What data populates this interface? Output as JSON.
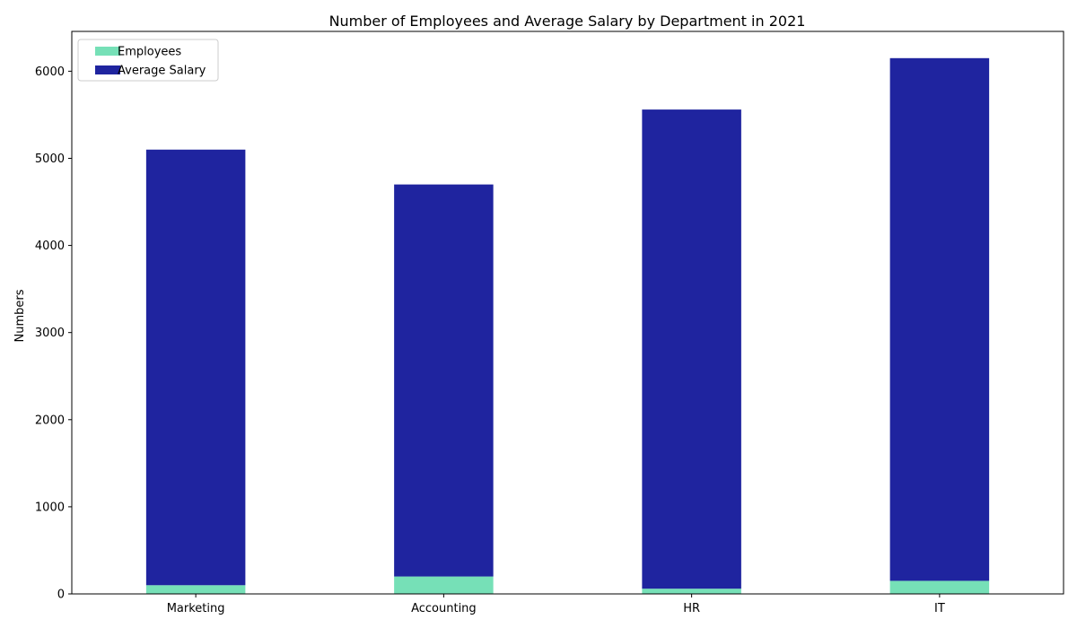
{
  "chart_data": {
    "type": "bar",
    "stacked": true,
    "title": "Number of Employees and Average Salary by Department in 2021",
    "xlabel": "",
    "ylabel": "Numbers",
    "categories": [
      "Marketing",
      "Accounting",
      "HR",
      "IT"
    ],
    "series": [
      {
        "name": "Employees",
        "values": [
          100,
          200,
          60,
          150
        ],
        "color": "#76E0B7"
      },
      {
        "name": "Average Salary",
        "values": [
          5000,
          4500,
          5500,
          6000
        ],
        "color": "#1F249F"
      }
    ],
    "ylim": [
      0,
      6457
    ],
    "yticks": [
      0,
      1000,
      2000,
      3000,
      4000,
      5000,
      6000
    ],
    "grid": false,
    "legend_position": "top-left"
  }
}
